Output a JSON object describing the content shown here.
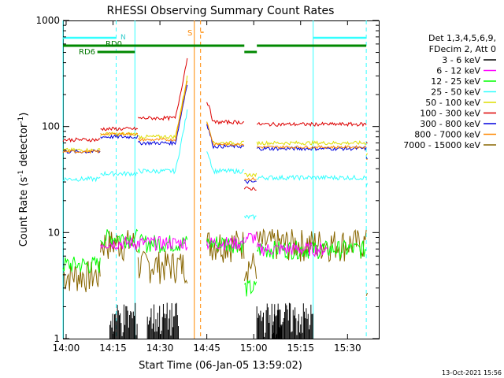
{
  "chart_data": {
    "type": "line",
    "title": "RHESSI Observing Summary Count Rates",
    "xlabel": "Start Time (06-Jan-05 13:59:02)",
    "ylabel_main": "Count Rate (s",
    "ylabel_sup1": "-1",
    "ylabel_mid": " detector",
    "ylabel_sup2": "-1",
    "ylabel_end": ")",
    "yscale": "log",
    "ylim": [
      1,
      1000
    ],
    "xlim_minutes": [
      0,
      101
    ],
    "x_ticks": [
      "14:00",
      "14:15",
      "14:30",
      "14:45",
      "15:00",
      "15:15",
      "15:30"
    ],
    "y_ticks": [
      "1",
      "10",
      "100",
      "1000"
    ],
    "legend_header": [
      "Det 1,3,4,5,6,9,",
      "FDecim 2, Att 0"
    ],
    "series": [
      {
        "name": "3 - 6 keV",
        "color": "#000000"
      },
      {
        "name": "6 - 12 keV",
        "color": "#ff00ff"
      },
      {
        "name": "12 - 25 keV",
        "color": "#00ff00"
      },
      {
        "name": "25 - 50 keV",
        "color": "#33ffff"
      },
      {
        "name": "50 - 100 keV",
        "color": "#dddd00"
      },
      {
        "name": "100 - 300 keV",
        "color": "#dd0000"
      },
      {
        "name": "300 - 800 keV",
        "color": "#0000dd"
      },
      {
        "name": "800 - 7000 keV",
        "color": "#ff8800"
      },
      {
        "name": "7000 - 15000 keV",
        "color": "#886600"
      }
    ],
    "annotations": {
      "N": "N",
      "RD0": "RD0",
      "RD6": "RD6",
      "S": "S"
    }
  },
  "footer_date": "13-Oct-2021 15:56"
}
